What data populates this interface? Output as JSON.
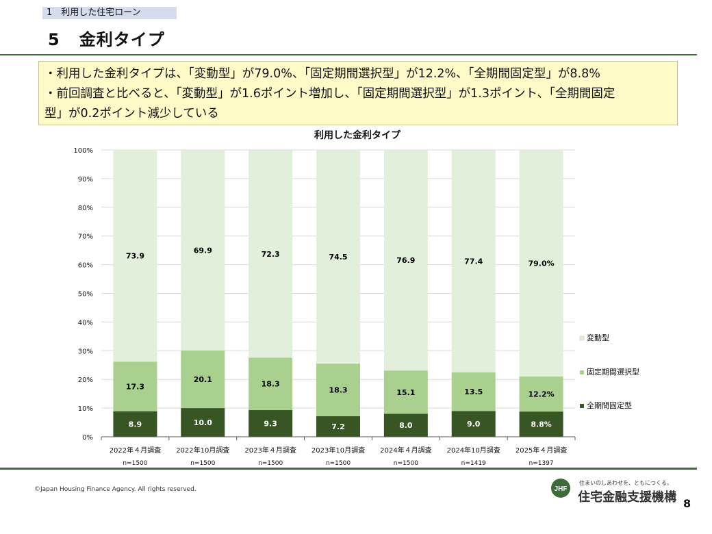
{
  "header": {
    "section": "1　利用した住宅ローン",
    "title_number": "5",
    "title_text": "金利タイプ"
  },
  "summary": {
    "line1": "・利用した金利タイプは、「変動型」が79.0%、「固定期間選択型」が12.2%、「全期間固定型」が8.8%",
    "line2": "・前回調査と比べると、「変動型」が1.6ポイント増加し、「固定期間選択型」が1.3ポイント、「全期間固定",
    "line3": "型」が0.2ポイント減少している"
  },
  "chart_data": {
    "type": "bar",
    "stacked": true,
    "percent_stacked": true,
    "title": "利用した金利タイプ",
    "categories": [
      "2022年４月調査",
      "2022年10月調査",
      "2023年４月調査",
      "2023年10月調査",
      "2024年４月調査",
      "2024年10月調査",
      "2025年４月調査"
    ],
    "sample_sizes": [
      "n=1500",
      "n=1500",
      "n=1500",
      "n=1500",
      "n=1500",
      "n=1419",
      "n=1397"
    ],
    "series": [
      {
        "name": "全期間固定型",
        "values": [
          8.9,
          10.0,
          9.3,
          7.2,
          8.0,
          9.0,
          8.8
        ],
        "labels": [
          "8.9",
          "10.0",
          "9.3",
          "7.2",
          "8.0",
          "9.0",
          "8.8%"
        ],
        "color": "#375623",
        "label_color": "#ffffff"
      },
      {
        "name": "固定期間選択型",
        "values": [
          17.3,
          20.1,
          18.3,
          18.3,
          15.1,
          13.5,
          12.2
        ],
        "labels": [
          "17.3",
          "20.1",
          "18.3",
          "18.3",
          "15.1",
          "13.5",
          "12.2%"
        ],
        "color": "#a9d08e",
        "label_color": "#000000"
      },
      {
        "name": "変動型",
        "values": [
          73.9,
          69.9,
          72.3,
          74.5,
          76.9,
          77.4,
          79.0
        ],
        "labels": [
          "73.9",
          "69.9",
          "72.3",
          "74.5",
          "76.9",
          "77.4",
          "79.0%"
        ],
        "color": "#e2efda",
        "label_color": "#000000"
      }
    ],
    "y_ticks": [
      "0%",
      "10%",
      "20%",
      "30%",
      "40%",
      "50%",
      "60%",
      "70%",
      "80%",
      "90%",
      "100%"
    ],
    "ylim": [
      0,
      100
    ],
    "grid": true,
    "legend_position": "right",
    "legend_order": [
      "変動型",
      "固定期間選択型",
      "全期間固定型"
    ]
  },
  "footer": {
    "copyright": "©Japan Housing Finance Agency. All rights reserved.",
    "logo_text": "JHF",
    "tagline": "住まいのしあわせを、ともにつくる。",
    "org_name": "住宅金融支援機構",
    "page_number": "8"
  }
}
